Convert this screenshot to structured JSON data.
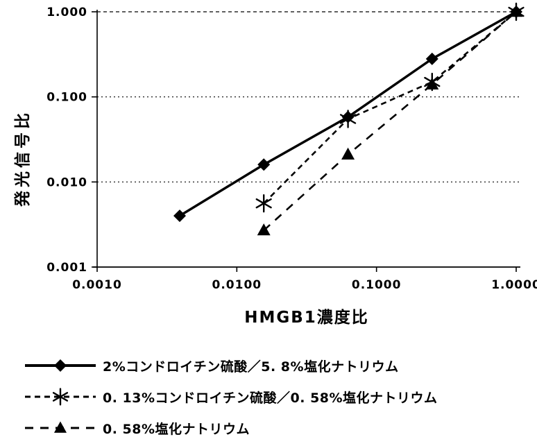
{
  "colors": {
    "ink": "#000000",
    "paper": "#ffffff"
  },
  "chart_data": {
    "type": "line",
    "title": "",
    "xlabel": "HMGB1濃度比",
    "ylabel": "発光信号比",
    "x_scale": "log",
    "y_scale": "log",
    "xlim": [
      0.001,
      1.0
    ],
    "ylim": [
      0.001,
      1.0
    ],
    "grid": "horizontal-dotted",
    "legend_position": "below",
    "x_ticks": [
      {
        "value": 0.001,
        "label": "0.0010"
      },
      {
        "value": 0.01,
        "label": "0.0100"
      },
      {
        "value": 0.1,
        "label": "0.1000"
      },
      {
        "value": 1.0,
        "label": "1.0000"
      }
    ],
    "y_ticks": [
      {
        "value": 1.0,
        "label": "1.000"
      },
      {
        "value": 0.1,
        "label": "0.100"
      },
      {
        "value": 0.01,
        "label": "0.010"
      },
      {
        "value": 0.001,
        "label": "0.001"
      }
    ],
    "series": [
      {
        "name": "2%コンドロイチン硫酸／5. 8%塩化ナトリウム",
        "line_style": "solid",
        "marker": "diamond",
        "points": [
          {
            "x": 0.0039,
            "y": 0.004
          },
          {
            "x": 0.0156,
            "y": 0.016
          },
          {
            "x": 0.0625,
            "y": 0.058
          },
          {
            "x": 0.25,
            "y": 0.28
          },
          {
            "x": 1.0,
            "y": 1.0
          }
        ]
      },
      {
        "name": "0. 13%コンドロイチン硫酸／0. 58%塩化ナトリウム",
        "line_style": "dashed",
        "marker": "asterisk",
        "points": [
          {
            "x": 0.0156,
            "y": 0.0056
          },
          {
            "x": 0.0625,
            "y": 0.055
          },
          {
            "x": 0.25,
            "y": 0.15
          },
          {
            "x": 1.0,
            "y": 1.0
          }
        ]
      },
      {
        "name": "0. 58%塩化ナトリウム",
        "line_style": "long-dash",
        "marker": "triangle",
        "points": [
          {
            "x": 0.0156,
            "y": 0.0027
          },
          {
            "x": 0.0625,
            "y": 0.021
          },
          {
            "x": 0.25,
            "y": 0.14
          },
          {
            "x": 1.0,
            "y": 1.0
          }
        ]
      }
    ]
  }
}
